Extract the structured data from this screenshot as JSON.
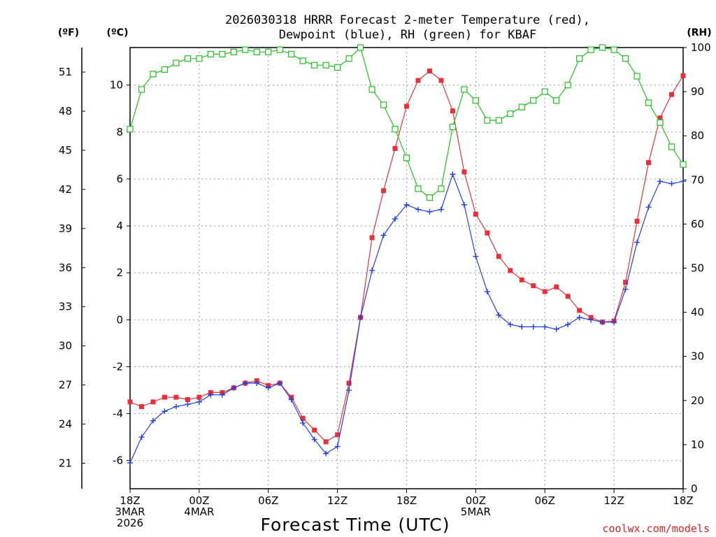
{
  "chart_data": {
    "type": "line",
    "title_line1": "2026030318 HRRR Forecast 2-meter Temperature (red),",
    "title_line2": "Dewpoint (blue), RH (green) for KBAF",
    "xlabel": "Forecast Time (UTC)",
    "credit": "coolwx.com/models",
    "units": {
      "fahrenheit": "(ºF)",
      "celsius": "(ºC)",
      "rh": "(RH)"
    },
    "x": [
      0,
      1,
      2,
      3,
      4,
      5,
      6,
      7,
      8,
      9,
      10,
      11,
      12,
      13,
      14,
      15,
      16,
      17,
      18,
      19,
      20,
      21,
      22,
      23,
      24,
      25,
      26,
      27,
      28,
      29,
      30,
      31,
      32,
      33,
      34,
      35,
      36,
      37,
      38,
      39,
      40,
      41,
      42,
      43,
      44,
      45,
      46,
      47,
      48
    ],
    "xlim": [
      0,
      48
    ],
    "x_ticks": [
      {
        "x": 0,
        "lines": [
          "18Z",
          "3MAR",
          "2026"
        ]
      },
      {
        "x": 6,
        "lines": [
          "00Z",
          "4MAR"
        ]
      },
      {
        "x": 12,
        "lines": [
          "06Z"
        ]
      },
      {
        "x": 18,
        "lines": [
          "12Z"
        ]
      },
      {
        "x": 24,
        "lines": [
          "18Z"
        ]
      },
      {
        "x": 30,
        "lines": [
          "00Z",
          "5MAR"
        ]
      },
      {
        "x": 36,
        "lines": [
          "06Z"
        ]
      },
      {
        "x": 42,
        "lines": [
          "12Z"
        ]
      },
      {
        "x": 48,
        "lines": [
          "18Z"
        ]
      }
    ],
    "celsius_axis": {
      "ylim": [
        -7.2,
        11.6
      ],
      "ticks": [
        "-6",
        "-4",
        "-2",
        "0",
        "2",
        "4",
        "6",
        "8",
        "10"
      ]
    },
    "fahrenheit_axis": {
      "ticks": [
        "21",
        "24",
        "27",
        "30",
        "33",
        "36",
        "39",
        "42",
        "45",
        "48",
        "51"
      ]
    },
    "rh_axis": {
      "ylim": [
        0,
        100
      ],
      "ticks": [
        "0",
        "10",
        "20",
        "30",
        "40",
        "50",
        "60",
        "70",
        "80",
        "90",
        "100"
      ]
    },
    "series": [
      {
        "name": "Temperature",
        "axis": "celsius",
        "color": "#e8303a",
        "marker": "filled-square",
        "values": [
          -3.5,
          -3.7,
          -3.5,
          -3.3,
          -3.3,
          -3.4,
          -3.3,
          -3.1,
          -3.1,
          -2.9,
          -2.7,
          -2.6,
          -2.8,
          -2.7,
          -3.3,
          -4.2,
          -4.7,
          -5.2,
          -4.9,
          -2.7,
          0.1,
          3.5,
          5.5,
          7.3,
          9.1,
          10.2,
          10.6,
          10.2,
          8.9,
          6.3,
          4.5,
          3.7,
          2.7,
          2.1,
          1.7,
          1.45,
          1.2,
          1.4,
          1.0,
          0.4,
          0.1,
          -0.1,
          -0.05,
          1.6,
          4.2,
          6.7,
          8.6,
          9.6,
          10.4
        ]
      },
      {
        "name": "Dewpoint",
        "axis": "celsius",
        "color": "#2040e0",
        "marker": "plus",
        "values": [
          -6.1,
          -5.0,
          -4.3,
          -3.9,
          -3.7,
          -3.6,
          -3.5,
          -3.2,
          -3.2,
          -2.9,
          -2.7,
          -2.7,
          -2.9,
          -2.7,
          -3.4,
          -4.4,
          -5.1,
          -5.7,
          -5.4,
          -3.0,
          0.1,
          2.1,
          3.6,
          4.3,
          4.9,
          4.7,
          4.6,
          4.7,
          6.2,
          4.9,
          2.7,
          1.2,
          0.2,
          -0.2,
          -0.3,
          -0.3,
          -0.3,
          -0.4,
          -0.2,
          0.1,
          0.0,
          -0.1,
          -0.1,
          1.3,
          3.3,
          4.8,
          5.9,
          5.8,
          5.9
        ]
      },
      {
        "name": "RH",
        "axis": "rh",
        "color": "#20c020",
        "marker": "open-square",
        "values": [
          81.5,
          90.5,
          94,
          95,
          96.5,
          97.5,
          97.5,
          98.5,
          98.5,
          99,
          99.5,
          99,
          99,
          99.5,
          98.5,
          97,
          96,
          96,
          95.5,
          97.5,
          100,
          90.5,
          87,
          81.5,
          75,
          68,
          66,
          68,
          82,
          90.5,
          88,
          83.5,
          83.5,
          85,
          86.5,
          88,
          90,
          88,
          91.5,
          97.5,
          99.5,
          100,
          99.5,
          97.5,
          93.5,
          87.5,
          83,
          77.5,
          73.5
        ]
      }
    ]
  }
}
